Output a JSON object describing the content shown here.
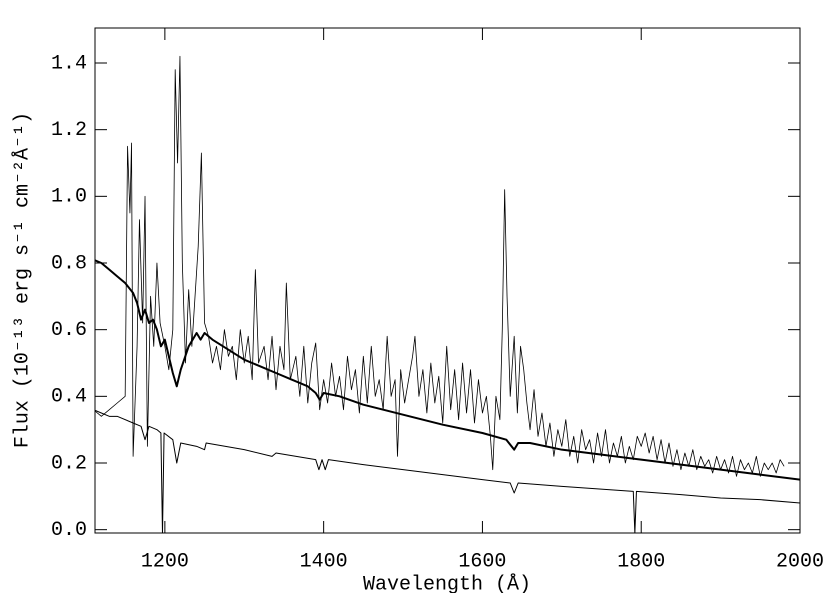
{
  "chart_data": {
    "type": "line",
    "x_label": "Wavelength (Å)",
    "y_label": "Flux (10⁻¹³ erg s⁻¹ cm⁻²Å⁻¹)",
    "xlim": [
      1112,
      2000
    ],
    "ylim": [
      -0.01,
      1.505
    ],
    "xticks": [
      1200,
      1400,
      1600,
      1800,
      2000
    ],
    "yticks": [
      {
        "value": 0,
        "label": "0.0"
      },
      {
        "value": 0.2,
        "label": "0.2"
      },
      {
        "value": 0.4,
        "label": "0.4"
      },
      {
        "value": 0.6,
        "label": "0.6"
      },
      {
        "value": 0.8,
        "label": "0.8"
      },
      {
        "value": 1.0,
        "label": "1.0"
      },
      {
        "value": 1.2,
        "label": "1.2"
      },
      {
        "value": 1.4,
        "label": "1.4"
      }
    ],
    "series": [
      {
        "color": "#000000",
        "linewidth": 0.8,
        "x": [
          1110,
          1120,
          1130,
          1140,
          1150,
          1153,
          1156,
          1158,
          1160,
          1165,
          1168,
          1172,
          1175,
          1178,
          1182,
          1186,
          1190,
          1194,
          1200,
          1205,
          1210,
          1213,
          1216,
          1219,
          1222,
          1226,
          1230,
          1234,
          1238,
          1242,
          1246,
          1250,
          1255,
          1260,
          1265,
          1270,
          1275,
          1280,
          1285,
          1290,
          1295,
          1300,
          1305,
          1310,
          1314,
          1318,
          1325,
          1330,
          1335,
          1340,
          1345,
          1350,
          1353,
          1358,
          1365,
          1370,
          1375,
          1380,
          1385,
          1390,
          1395,
          1400,
          1405,
          1410,
          1415,
          1420,
          1425,
          1430,
          1435,
          1440,
          1445,
          1450,
          1455,
          1460,
          1465,
          1470,
          1475,
          1480,
          1485,
          1490,
          1493,
          1497,
          1502,
          1507,
          1512,
          1515,
          1520,
          1525,
          1530,
          1535,
          1540,
          1545,
          1550,
          1555,
          1560,
          1565,
          1570,
          1575,
          1580,
          1585,
          1590,
          1595,
          1600,
          1605,
          1610,
          1613,
          1617,
          1622,
          1625,
          1628,
          1631,
          1635,
          1640,
          1644,
          1648,
          1652,
          1656,
          1660,
          1665,
          1670,
          1675,
          1680,
          1685,
          1690,
          1695,
          1700,
          1705,
          1710,
          1715,
          1720,
          1725,
          1730,
          1735,
          1740,
          1745,
          1750,
          1755,
          1760,
          1765,
          1770,
          1775,
          1780,
          1785,
          1790,
          1795,
          1800,
          1805,
          1810,
          1815,
          1820,
          1825,
          1830,
          1835,
          1840,
          1845,
          1850,
          1855,
          1860,
          1865,
          1870,
          1875,
          1880,
          1885,
          1890,
          1895,
          1900,
          1905,
          1910,
          1915,
          1920,
          1925,
          1930,
          1935,
          1940,
          1945,
          1950,
          1955,
          1960,
          1965,
          1970,
          1975,
          1980
        ],
        "values": [
          0.36,
          0.34,
          0.36,
          0.38,
          0.4,
          1.15,
          0.95,
          1.16,
          0.22,
          0.55,
          0.93,
          0.62,
          1.0,
          0.25,
          0.7,
          0.55,
          0.8,
          0.62,
          0.55,
          0.48,
          0.6,
          1.38,
          1.1,
          1.42,
          0.8,
          0.5,
          0.72,
          0.55,
          0.7,
          0.85,
          1.13,
          0.62,
          0.58,
          0.5,
          0.55,
          0.48,
          0.6,
          0.52,
          0.55,
          0.45,
          0.6,
          0.5,
          0.58,
          0.45,
          0.78,
          0.5,
          0.55,
          0.45,
          0.58,
          0.42,
          0.55,
          0.48,
          0.74,
          0.45,
          0.52,
          0.4,
          0.55,
          0.38,
          0.5,
          0.56,
          0.36,
          0.45,
          0.38,
          0.5,
          0.4,
          0.46,
          0.36,
          0.52,
          0.42,
          0.48,
          0.35,
          0.52,
          0.38,
          0.55,
          0.4,
          0.45,
          0.36,
          0.58,
          0.4,
          0.45,
          0.22,
          0.48,
          0.38,
          0.45,
          0.52,
          0.58,
          0.4,
          0.48,
          0.35,
          0.5,
          0.38,
          0.46,
          0.32,
          0.55,
          0.36,
          0.48,
          0.33,
          0.5,
          0.35,
          0.48,
          0.32,
          0.45,
          0.35,
          0.4,
          0.28,
          0.18,
          0.4,
          0.33,
          0.6,
          1.02,
          0.7,
          0.4,
          0.58,
          0.35,
          0.55,
          0.48,
          0.38,
          0.3,
          0.42,
          0.28,
          0.35,
          0.25,
          0.32,
          0.22,
          0.3,
          0.25,
          0.33,
          0.22,
          0.28,
          0.2,
          0.3,
          0.24,
          0.27,
          0.2,
          0.29,
          0.22,
          0.3,
          0.2,
          0.26,
          0.22,
          0.28,
          0.2,
          0.25,
          0.21,
          0.28,
          0.25,
          0.29,
          0.23,
          0.28,
          0.21,
          0.27,
          0.2,
          0.26,
          0.19,
          0.24,
          0.18,
          0.23,
          0.19,
          0.24,
          0.18,
          0.22,
          0.19,
          0.21,
          0.17,
          0.22,
          0.18,
          0.21,
          0.17,
          0.22,
          0.16,
          0.21,
          0.18,
          0.2,
          0.17,
          0.22,
          0.16,
          0.2,
          0.18,
          0.2,
          0.17,
          0.21,
          0.19
        ]
      },
      {
        "color": "#000000",
        "linewidth": 2,
        "x": [
          1110,
          1120,
          1130,
          1140,
          1150,
          1160,
          1165,
          1170,
          1175,
          1180,
          1185,
          1190,
          1195,
          1200,
          1205,
          1210,
          1215,
          1220,
          1230,
          1240,
          1245,
          1250,
          1260,
          1280,
          1300,
          1320,
          1340,
          1360,
          1380,
          1390,
          1395,
          1400,
          1420,
          1450,
          1500,
          1550,
          1600,
          1630,
          1640,
          1645,
          1660,
          1700,
          1750,
          1800,
          1850,
          1900,
          1950,
          2000
        ],
        "values": [
          0.81,
          0.8,
          0.78,
          0.76,
          0.74,
          0.71,
          0.68,
          0.63,
          0.66,
          0.62,
          0.63,
          0.6,
          0.55,
          0.57,
          0.52,
          0.47,
          0.43,
          0.48,
          0.55,
          0.59,
          0.57,
          0.59,
          0.57,
          0.54,
          0.51,
          0.49,
          0.47,
          0.45,
          0.43,
          0.41,
          0.39,
          0.41,
          0.4,
          0.375,
          0.345,
          0.315,
          0.29,
          0.27,
          0.24,
          0.26,
          0.26,
          0.24,
          0.225,
          0.21,
          0.195,
          0.18,
          0.165,
          0.15
        ]
      },
      {
        "color": "#000000",
        "linewidth": 1,
        "x": [
          1110,
          1120,
          1130,
          1140,
          1160,
          1170,
          1175,
          1180,
          1190,
          1195,
          1197,
          1199,
          1210,
          1215,
          1220,
          1240,
          1250,
          1252,
          1300,
          1335,
          1340,
          1390,
          1394,
          1398,
          1402,
          1406,
          1450,
          1500,
          1550,
          1600,
          1635,
          1640,
          1645,
          1700,
          1790,
          1792,
          1794,
          1850,
          1900,
          1950,
          2000
        ],
        "values": [
          0.36,
          0.35,
          0.34,
          0.34,
          0.32,
          0.31,
          0.27,
          0.31,
          0.3,
          0.29,
          -0.01,
          0.29,
          0.27,
          0.2,
          0.26,
          0.25,
          0.24,
          0.26,
          0.24,
          0.22,
          0.23,
          0.21,
          0.18,
          0.21,
          0.18,
          0.21,
          0.195,
          0.18,
          0.165,
          0.15,
          0.14,
          0.11,
          0.14,
          0.13,
          0.115,
          -0.01,
          0.115,
          0.105,
          0.095,
          0.09,
          0.08
        ]
      }
    ]
  }
}
